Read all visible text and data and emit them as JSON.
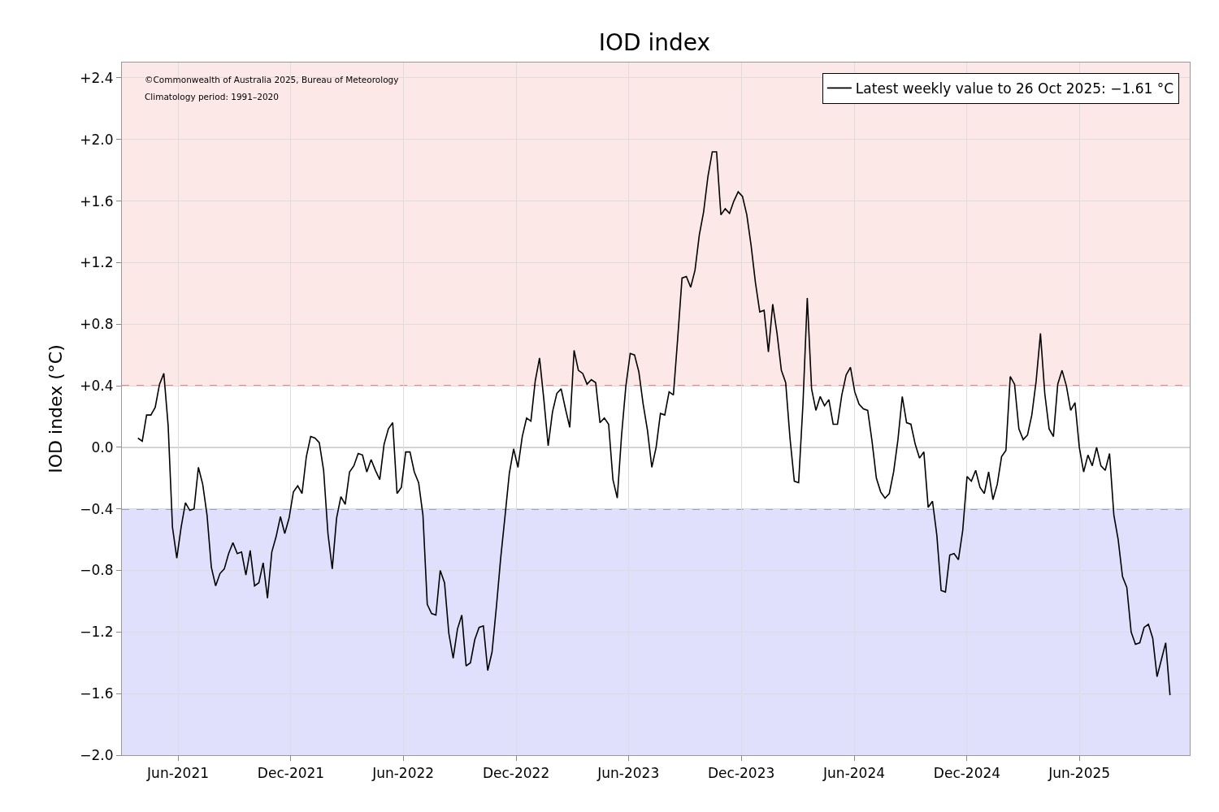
{
  "chart_data": {
    "type": "line",
    "title": "IOD index",
    "ylabel": "IOD index (°C)",
    "annotations": [
      "©Commonwealth of Australia 2025, Bureau of Meteorology",
      "Climatology period: 1991–2020"
    ],
    "x": [
      "2021-03-28",
      "2021-04-04",
      "2021-04-11",
      "2021-04-18",
      "2021-04-25",
      "2021-05-02",
      "2021-05-09",
      "2021-05-16",
      "2021-05-23",
      "2021-05-30",
      "2021-06-06",
      "2021-06-13",
      "2021-06-20",
      "2021-06-27",
      "2021-07-04",
      "2021-07-11",
      "2021-07-18",
      "2021-07-25",
      "2021-08-01",
      "2021-08-08",
      "2021-08-15",
      "2021-08-22",
      "2021-08-29",
      "2021-09-05",
      "2021-09-12",
      "2021-09-19",
      "2021-09-26",
      "2021-10-03",
      "2021-10-10",
      "2021-10-17",
      "2021-10-24",
      "2021-10-31",
      "2021-11-07",
      "2021-11-14",
      "2021-11-21",
      "2021-11-28",
      "2021-12-05",
      "2021-12-12",
      "2021-12-19",
      "2021-12-26",
      "2022-01-02",
      "2022-01-09",
      "2022-01-16",
      "2022-01-23",
      "2022-01-30",
      "2022-02-06",
      "2022-02-13",
      "2022-02-20",
      "2022-02-27",
      "2022-03-06",
      "2022-03-13",
      "2022-03-20",
      "2022-03-27",
      "2022-04-03",
      "2022-04-10",
      "2022-04-17",
      "2022-04-24",
      "2022-05-01",
      "2022-05-08",
      "2022-05-15",
      "2022-05-22",
      "2022-05-29",
      "2022-06-05",
      "2022-06-12",
      "2022-06-19",
      "2022-06-26",
      "2022-07-03",
      "2022-07-10",
      "2022-07-17",
      "2022-07-24",
      "2022-07-31",
      "2022-08-07",
      "2022-08-14",
      "2022-08-21",
      "2022-08-28",
      "2022-09-04",
      "2022-09-11",
      "2022-09-18",
      "2022-09-25",
      "2022-10-02",
      "2022-10-09",
      "2022-10-16",
      "2022-10-23",
      "2022-10-30",
      "2022-11-06",
      "2022-11-13",
      "2022-11-20",
      "2022-11-27",
      "2022-12-04",
      "2022-12-11",
      "2022-12-18",
      "2022-12-25",
      "2023-01-01",
      "2023-01-08",
      "2023-01-15",
      "2023-01-22",
      "2023-01-29",
      "2023-02-05",
      "2023-02-12",
      "2023-02-19",
      "2023-02-26",
      "2023-03-05",
      "2023-03-12",
      "2023-03-19",
      "2023-03-26",
      "2023-04-02",
      "2023-04-09",
      "2023-04-16",
      "2023-04-23",
      "2023-04-30",
      "2023-05-07",
      "2023-05-14",
      "2023-05-21",
      "2023-05-28",
      "2023-06-04",
      "2023-06-11",
      "2023-06-18",
      "2023-06-25",
      "2023-07-02",
      "2023-07-09",
      "2023-07-16",
      "2023-07-23",
      "2023-07-30",
      "2023-08-06",
      "2023-08-13",
      "2023-08-20",
      "2023-08-27",
      "2023-09-03",
      "2023-09-10",
      "2023-09-17",
      "2023-09-24",
      "2023-10-01",
      "2023-10-08",
      "2023-10-15",
      "2023-10-22",
      "2023-10-29",
      "2023-11-05",
      "2023-11-12",
      "2023-11-19",
      "2023-11-26",
      "2023-12-03",
      "2023-12-10",
      "2023-12-17",
      "2023-12-24",
      "2023-12-31",
      "2024-01-07",
      "2024-01-14",
      "2024-01-21",
      "2024-01-28",
      "2024-02-04",
      "2024-02-11",
      "2024-02-18",
      "2024-02-25",
      "2024-03-03",
      "2024-03-10",
      "2024-03-17",
      "2024-03-24",
      "2024-03-31",
      "2024-04-07",
      "2024-04-14",
      "2024-04-21",
      "2024-04-28",
      "2024-05-05",
      "2024-05-12",
      "2024-05-19",
      "2024-05-26",
      "2024-06-02",
      "2024-06-09",
      "2024-06-16",
      "2024-06-23",
      "2024-06-30",
      "2024-07-07",
      "2024-07-14",
      "2024-07-21",
      "2024-07-28",
      "2024-08-04",
      "2024-08-11",
      "2024-08-18",
      "2024-08-25",
      "2024-09-01",
      "2024-09-08",
      "2024-09-15",
      "2024-09-22",
      "2024-09-29",
      "2024-10-06",
      "2024-10-13",
      "2024-10-20",
      "2024-10-27",
      "2024-11-03",
      "2024-11-10",
      "2024-11-17",
      "2024-11-24",
      "2024-12-01",
      "2024-12-08",
      "2024-12-15",
      "2024-12-22",
      "2024-12-29",
      "2025-01-05",
      "2025-01-12",
      "2025-01-19",
      "2025-01-26",
      "2025-02-02",
      "2025-02-09",
      "2025-02-16",
      "2025-02-23",
      "2025-03-02",
      "2025-03-09",
      "2025-03-16",
      "2025-03-23",
      "2025-03-30",
      "2025-04-06",
      "2025-04-13",
      "2025-04-20",
      "2025-04-27",
      "2025-05-04",
      "2025-05-11",
      "2025-05-18",
      "2025-05-25",
      "2025-06-01",
      "2025-06-08",
      "2025-06-15",
      "2025-06-22",
      "2025-06-29",
      "2025-07-06",
      "2025-07-13",
      "2025-07-20",
      "2025-07-27",
      "2025-08-03",
      "2025-08-10",
      "2025-08-17",
      "2025-08-24",
      "2025-08-31",
      "2025-09-07",
      "2025-09-14",
      "2025-09-21",
      "2025-09-28",
      "2025-10-05",
      "2025-10-12",
      "2025-10-19",
      "2025-10-26"
    ],
    "series": [
      {
        "name": "Latest weekly value to 26 Oct 2025: −1.61 °C",
        "color": "#000000",
        "values": [
          0.06,
          0.04,
          0.21,
          0.21,
          0.26,
          0.41,
          0.48,
          0.14,
          -0.52,
          -0.72,
          -0.52,
          -0.36,
          -0.41,
          -0.4,
          -0.13,
          -0.24,
          -0.44,
          -0.78,
          -0.9,
          -0.82,
          -0.79,
          -0.69,
          -0.62,
          -0.69,
          -0.68,
          -0.83,
          -0.67,
          -0.9,
          -0.88,
          -0.75,
          -0.98,
          -0.68,
          -0.58,
          -0.45,
          -0.56,
          -0.46,
          -0.29,
          -0.25,
          -0.3,
          -0.06,
          0.07,
          0.06,
          0.03,
          -0.15,
          -0.56,
          -0.79,
          -0.46,
          -0.32,
          -0.37,
          -0.16,
          -0.12,
          -0.04,
          -0.05,
          -0.16,
          -0.08,
          -0.15,
          -0.21,
          0.02,
          0.12,
          0.16,
          -0.3,
          -0.26,
          -0.03,
          -0.03,
          -0.16,
          -0.23,
          -0.44,
          -1.02,
          -1.08,
          -1.09,
          -0.8,
          -0.88,
          -1.21,
          -1.37,
          -1.18,
          -1.09,
          -1.42,
          -1.4,
          -1.25,
          -1.17,
          -1.16,
          -1.45,
          -1.33,
          -1.04,
          -0.72,
          -0.45,
          -0.17,
          -0.01,
          -0.13,
          0.07,
          0.19,
          0.17,
          0.43,
          0.58,
          0.31,
          0.01,
          0.23,
          0.35,
          0.38,
          0.25,
          0.13,
          0.63,
          0.5,
          0.48,
          0.41,
          0.44,
          0.42,
          0.16,
          0.19,
          0.15,
          -0.21,
          -0.33,
          0.08,
          0.4,
          0.61,
          0.6,
          0.49,
          0.28,
          0.11,
          -0.13,
          0.0,
          0.22,
          0.21,
          0.36,
          0.34,
          0.71,
          1.1,
          1.11,
          1.04,
          1.15,
          1.38,
          1.53,
          1.76,
          1.92,
          1.92,
          1.51,
          1.55,
          1.52,
          1.6,
          1.66,
          1.63,
          1.51,
          1.31,
          1.07,
          0.88,
          0.89,
          0.62,
          0.93,
          0.74,
          0.5,
          0.42,
          0.06,
          -0.22,
          -0.23,
          0.28,
          0.97,
          0.38,
          0.24,
          0.33,
          0.27,
          0.31,
          0.15,
          0.15,
          0.34,
          0.47,
          0.52,
          0.36,
          0.28,
          0.25,
          0.24,
          0.04,
          -0.2,
          -0.29,
          -0.33,
          -0.3,
          -0.16,
          0.05,
          0.33,
          0.16,
          0.15,
          0.02,
          -0.07,
          -0.03,
          -0.39,
          -0.35,
          -0.57,
          -0.93,
          -0.94,
          -0.7,
          -0.69,
          -0.73,
          -0.54,
          -0.19,
          -0.22,
          -0.15,
          -0.26,
          -0.3,
          -0.16,
          -0.34,
          -0.24,
          -0.06,
          -0.02,
          0.46,
          0.41,
          0.12,
          0.05,
          0.08,
          0.21,
          0.43,
          0.74,
          0.35,
          0.12,
          0.07,
          0.41,
          0.5,
          0.4,
          0.24,
          0.29,
          0.0,
          -0.16,
          -0.05,
          -0.12,
          0.0,
          -0.12,
          -0.15,
          -0.04,
          -0.44,
          -0.6,
          -0.84,
          -0.91,
          -1.2,
          -1.28,
          -1.27,
          -1.17,
          -1.15,
          -1.24,
          -1.49,
          -1.38,
          -1.27,
          -1.61
        ]
      }
    ],
    "xlim": [
      "2021-03-02",
      "2025-11-27"
    ],
    "xticks": [
      {
        "value": "2021-06-01",
        "label": "Jun-2021"
      },
      {
        "value": "2021-12-01",
        "label": "Dec-2021"
      },
      {
        "value": "2022-06-01",
        "label": "Jun-2022"
      },
      {
        "value": "2022-12-01",
        "label": "Dec-2022"
      },
      {
        "value": "2023-06-01",
        "label": "Jun-2023"
      },
      {
        "value": "2023-12-01",
        "label": "Dec-2023"
      },
      {
        "value": "2024-06-01",
        "label": "Jun-2024"
      },
      {
        "value": "2024-12-01",
        "label": "Dec-2024"
      },
      {
        "value": "2025-06-01",
        "label": "Jun-2025"
      }
    ],
    "ylim": [
      -2.0,
      2.5
    ],
    "yticks": [
      {
        "value": -2.0,
        "label": "−2.0"
      },
      {
        "value": -1.6,
        "label": "−1.6"
      },
      {
        "value": -1.2,
        "label": "−1.2"
      },
      {
        "value": -0.8,
        "label": "−0.8"
      },
      {
        "value": -0.4,
        "label": "−0.4"
      },
      {
        "value": 0.0,
        "label": "0.0"
      },
      {
        "value": 0.4,
        "label": "+0.4"
      },
      {
        "value": 0.8,
        "label": "+0.8"
      },
      {
        "value": 1.2,
        "label": "+1.2"
      },
      {
        "value": 1.6,
        "label": "+1.6"
      },
      {
        "value": 2.0,
        "label": "+2.0"
      },
      {
        "value": 2.4,
        "label": "+2.4"
      }
    ],
    "bands": [
      {
        "axis": "y",
        "from": 0.4,
        "to": 2.5,
        "color": "#fde8e8"
      },
      {
        "axis": "y",
        "from": -2.0,
        "to": -0.4,
        "color": "#e0e0fc"
      }
    ],
    "ref_lines": [
      {
        "axis": "y",
        "value": 0.4,
        "color": "#f06060",
        "line_style": "dashed"
      },
      {
        "axis": "y",
        "value": -0.4,
        "color": "#5858a8",
        "line_style": "dashed"
      },
      {
        "axis": "y",
        "value": 0.0,
        "color": "#bbbbbb",
        "line_style": "solid"
      }
    ],
    "grid": true,
    "legend": "top right",
    "marker": "none",
    "line_style": "solid"
  }
}
